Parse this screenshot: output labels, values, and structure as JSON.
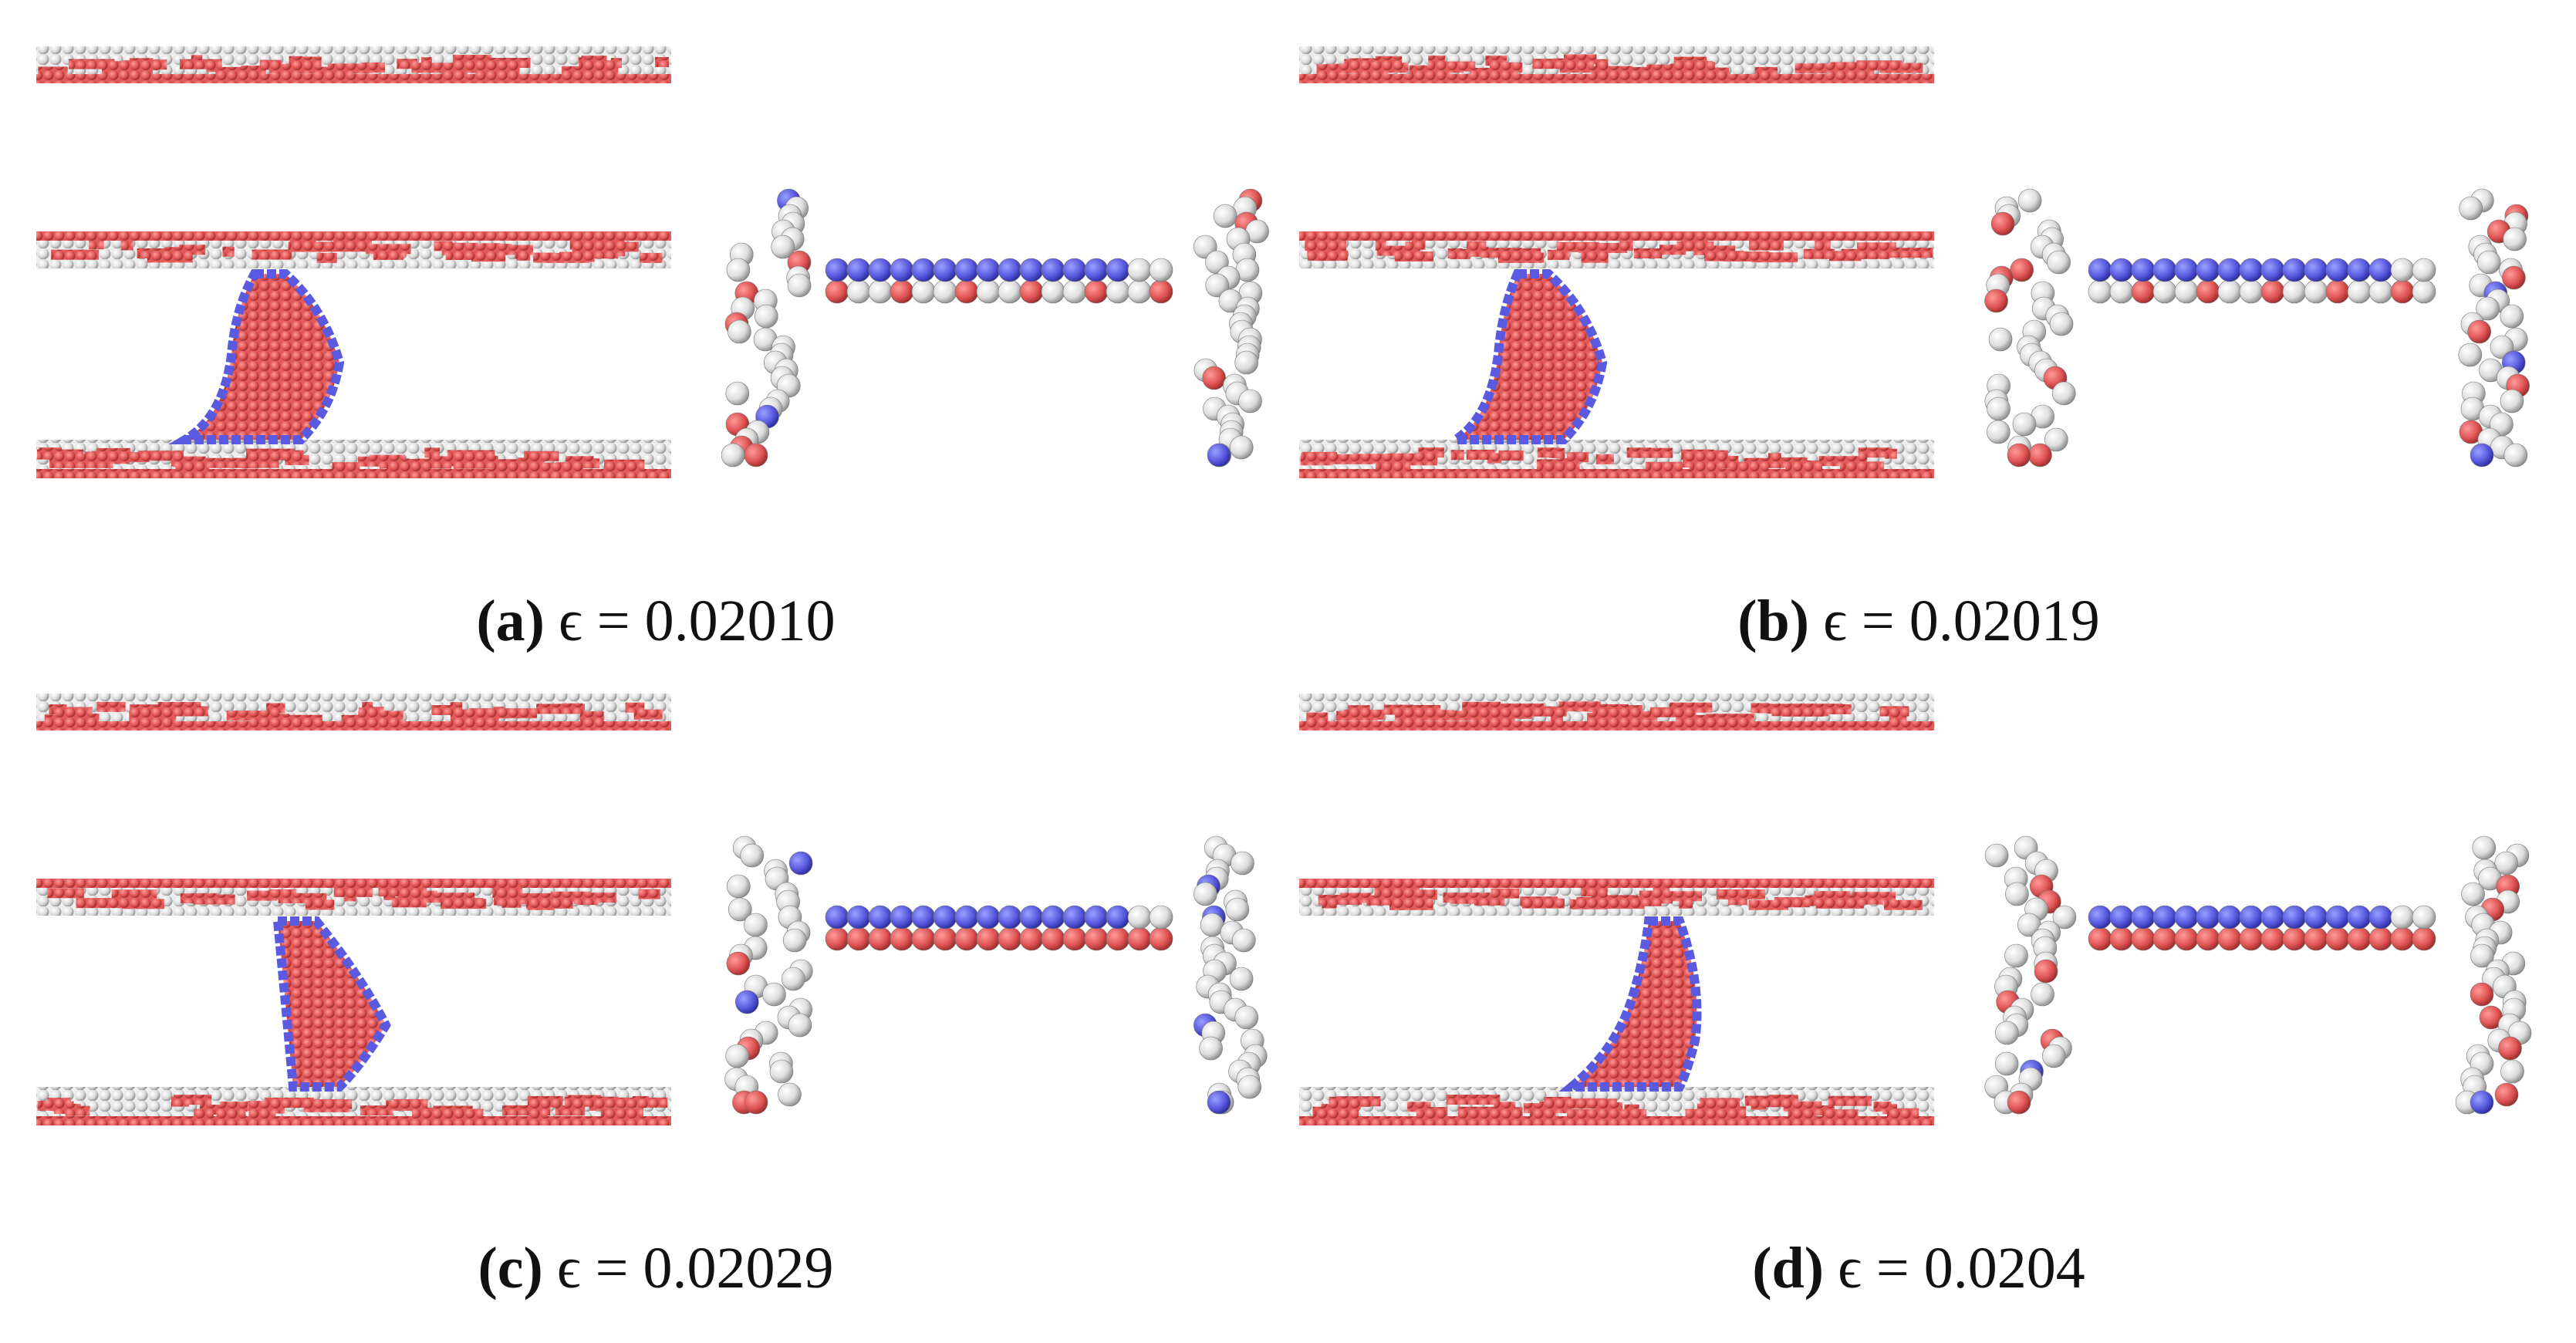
{
  "panels": [
    {
      "label": "(a)",
      "caption": "ϵ = 0.02010"
    },
    {
      "label": "(b)",
      "caption": "ϵ = 0.02019"
    },
    {
      "label": "(c)",
      "caption": "ϵ = 0.02029"
    },
    {
      "label": "(d)",
      "caption": "ϵ = 0.0204"
    }
  ]
}
